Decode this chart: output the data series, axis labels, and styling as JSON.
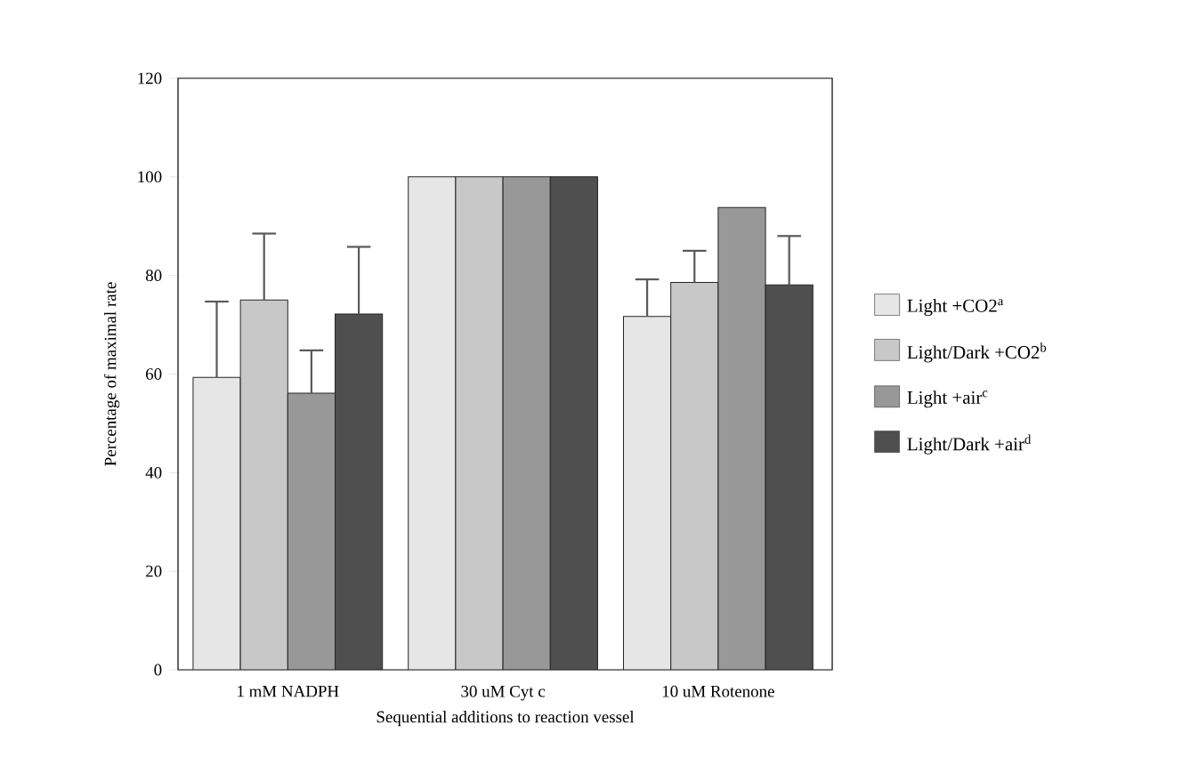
{
  "chart_data": {
    "type": "bar",
    "xlabel": "Sequential additions to reaction vessel",
    "ylabel": "Percentage of maximal rate",
    "categories": [
      "1 mM NADPH",
      "30 uM Cyt c",
      "10 uM Rotenone"
    ],
    "series": [
      {
        "name": "Light +CO2$^{a}$",
        "color": "#e6e6e6",
        "values": [
          59.3,
          100,
          71.7
        ],
        "errors": [
          [
            59.3,
            74.7
          ],
          null,
          [
            71.7,
            79.2
          ]
        ]
      },
      {
        "name": "Light/Dark +CO2$^{b}$",
        "color": "#c8c8c8",
        "values": [
          75.0,
          100,
          78.6
        ],
        "errors": [
          [
            75.0,
            88.5
          ],
          null,
          [
            78.6,
            85.0
          ]
        ]
      },
      {
        "name": "Light +air$^{c}$",
        "color": "#989898",
        "values": [
          56.1,
          100,
          93.8
        ],
        "errors": [
          [
            56.1,
            64.8
          ],
          null,
          null
        ]
      },
      {
        "name": "Light/Dark +air$^{d}$",
        "color": "#4f4f4f",
        "values": [
          72.2,
          100,
          78.1
        ],
        "errors": [
          [
            72.2,
            85.8
          ],
          null,
          [
            78.1,
            88.0
          ]
        ]
      }
    ],
    "ylim": [
      0,
      120
    ],
    "yticks": [
      0,
      20,
      40,
      60,
      80,
      100,
      120
    ],
    "grid": false,
    "legend": "right"
  }
}
